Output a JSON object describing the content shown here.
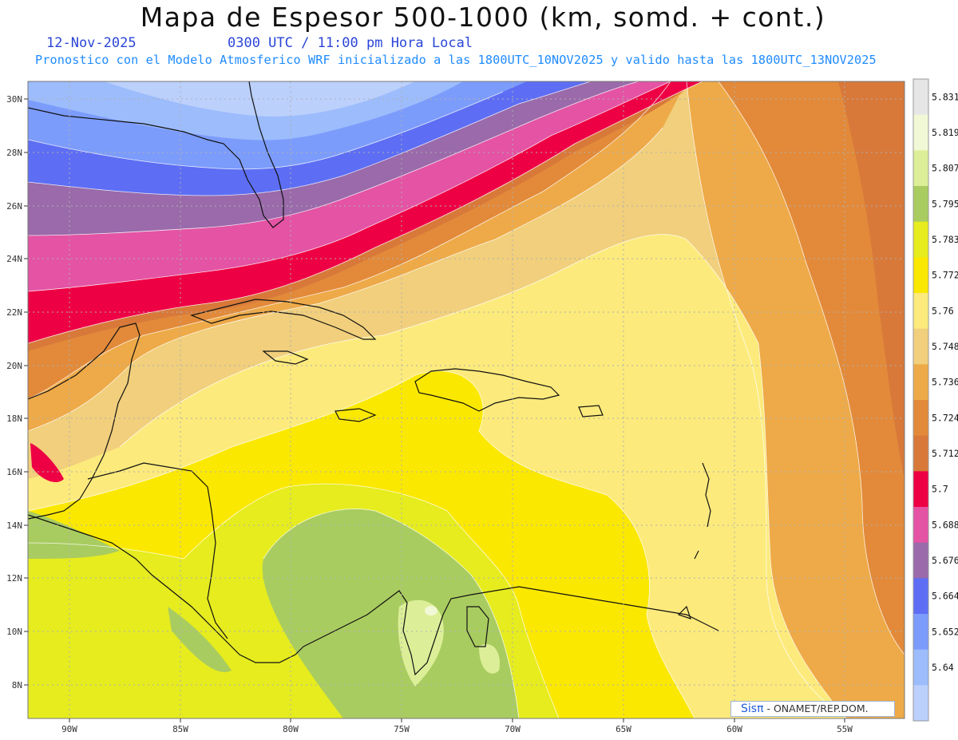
{
  "header": {
    "title": "Mapa de Espesor 500-1000 (km, somd. + cont.)",
    "date": "12-Nov-2025",
    "time": "0300 UTC / 11:00 pm Hora Local",
    "subtitle": "Pronostico con el Modelo Atmosferico WRF inicializado a las 1800UTC_10NOV2025 y valido hasta las  1800UTC_13NOV2025"
  },
  "map": {
    "lat_labels": [
      "30N",
      "28N",
      "26N",
      "24N",
      "22N",
      "20N",
      "18N",
      "16N",
      "14N",
      "12N",
      "10N",
      "8N"
    ],
    "lon_labels": [
      "90W",
      "85W",
      "80W",
      "75W",
      "70W",
      "65W",
      "60W",
      "55W"
    ]
  },
  "colorbar": {
    "levels": [
      "5.831",
      "5.819",
      "5.807",
      "5.795",
      "5.783",
      "5.772",
      "5.76",
      "5.748",
      "5.736",
      "5.724",
      "5.712",
      "5.7",
      "5.688",
      "5.676",
      "5.664",
      "5.652",
      "5.64"
    ],
    "colors": [
      "#e6e6e6",
      "#f1f8d6",
      "#dcef98",
      "#a9cc60",
      "#e6ec1e",
      "#fbe800",
      "#fcea7c",
      "#f1cf7c",
      "#eeaa48",
      "#e28a3a",
      "#d8793a",
      "#ee0044",
      "#e453a4",
      "#9a6aaa",
      "#5d6ef4",
      "#7c9cfc",
      "#9cbcfc",
      "#bcd0fc"
    ]
  },
  "credit": {
    "brand": "Sisπ",
    "text": "- ONAMET/REP.DOM."
  }
}
